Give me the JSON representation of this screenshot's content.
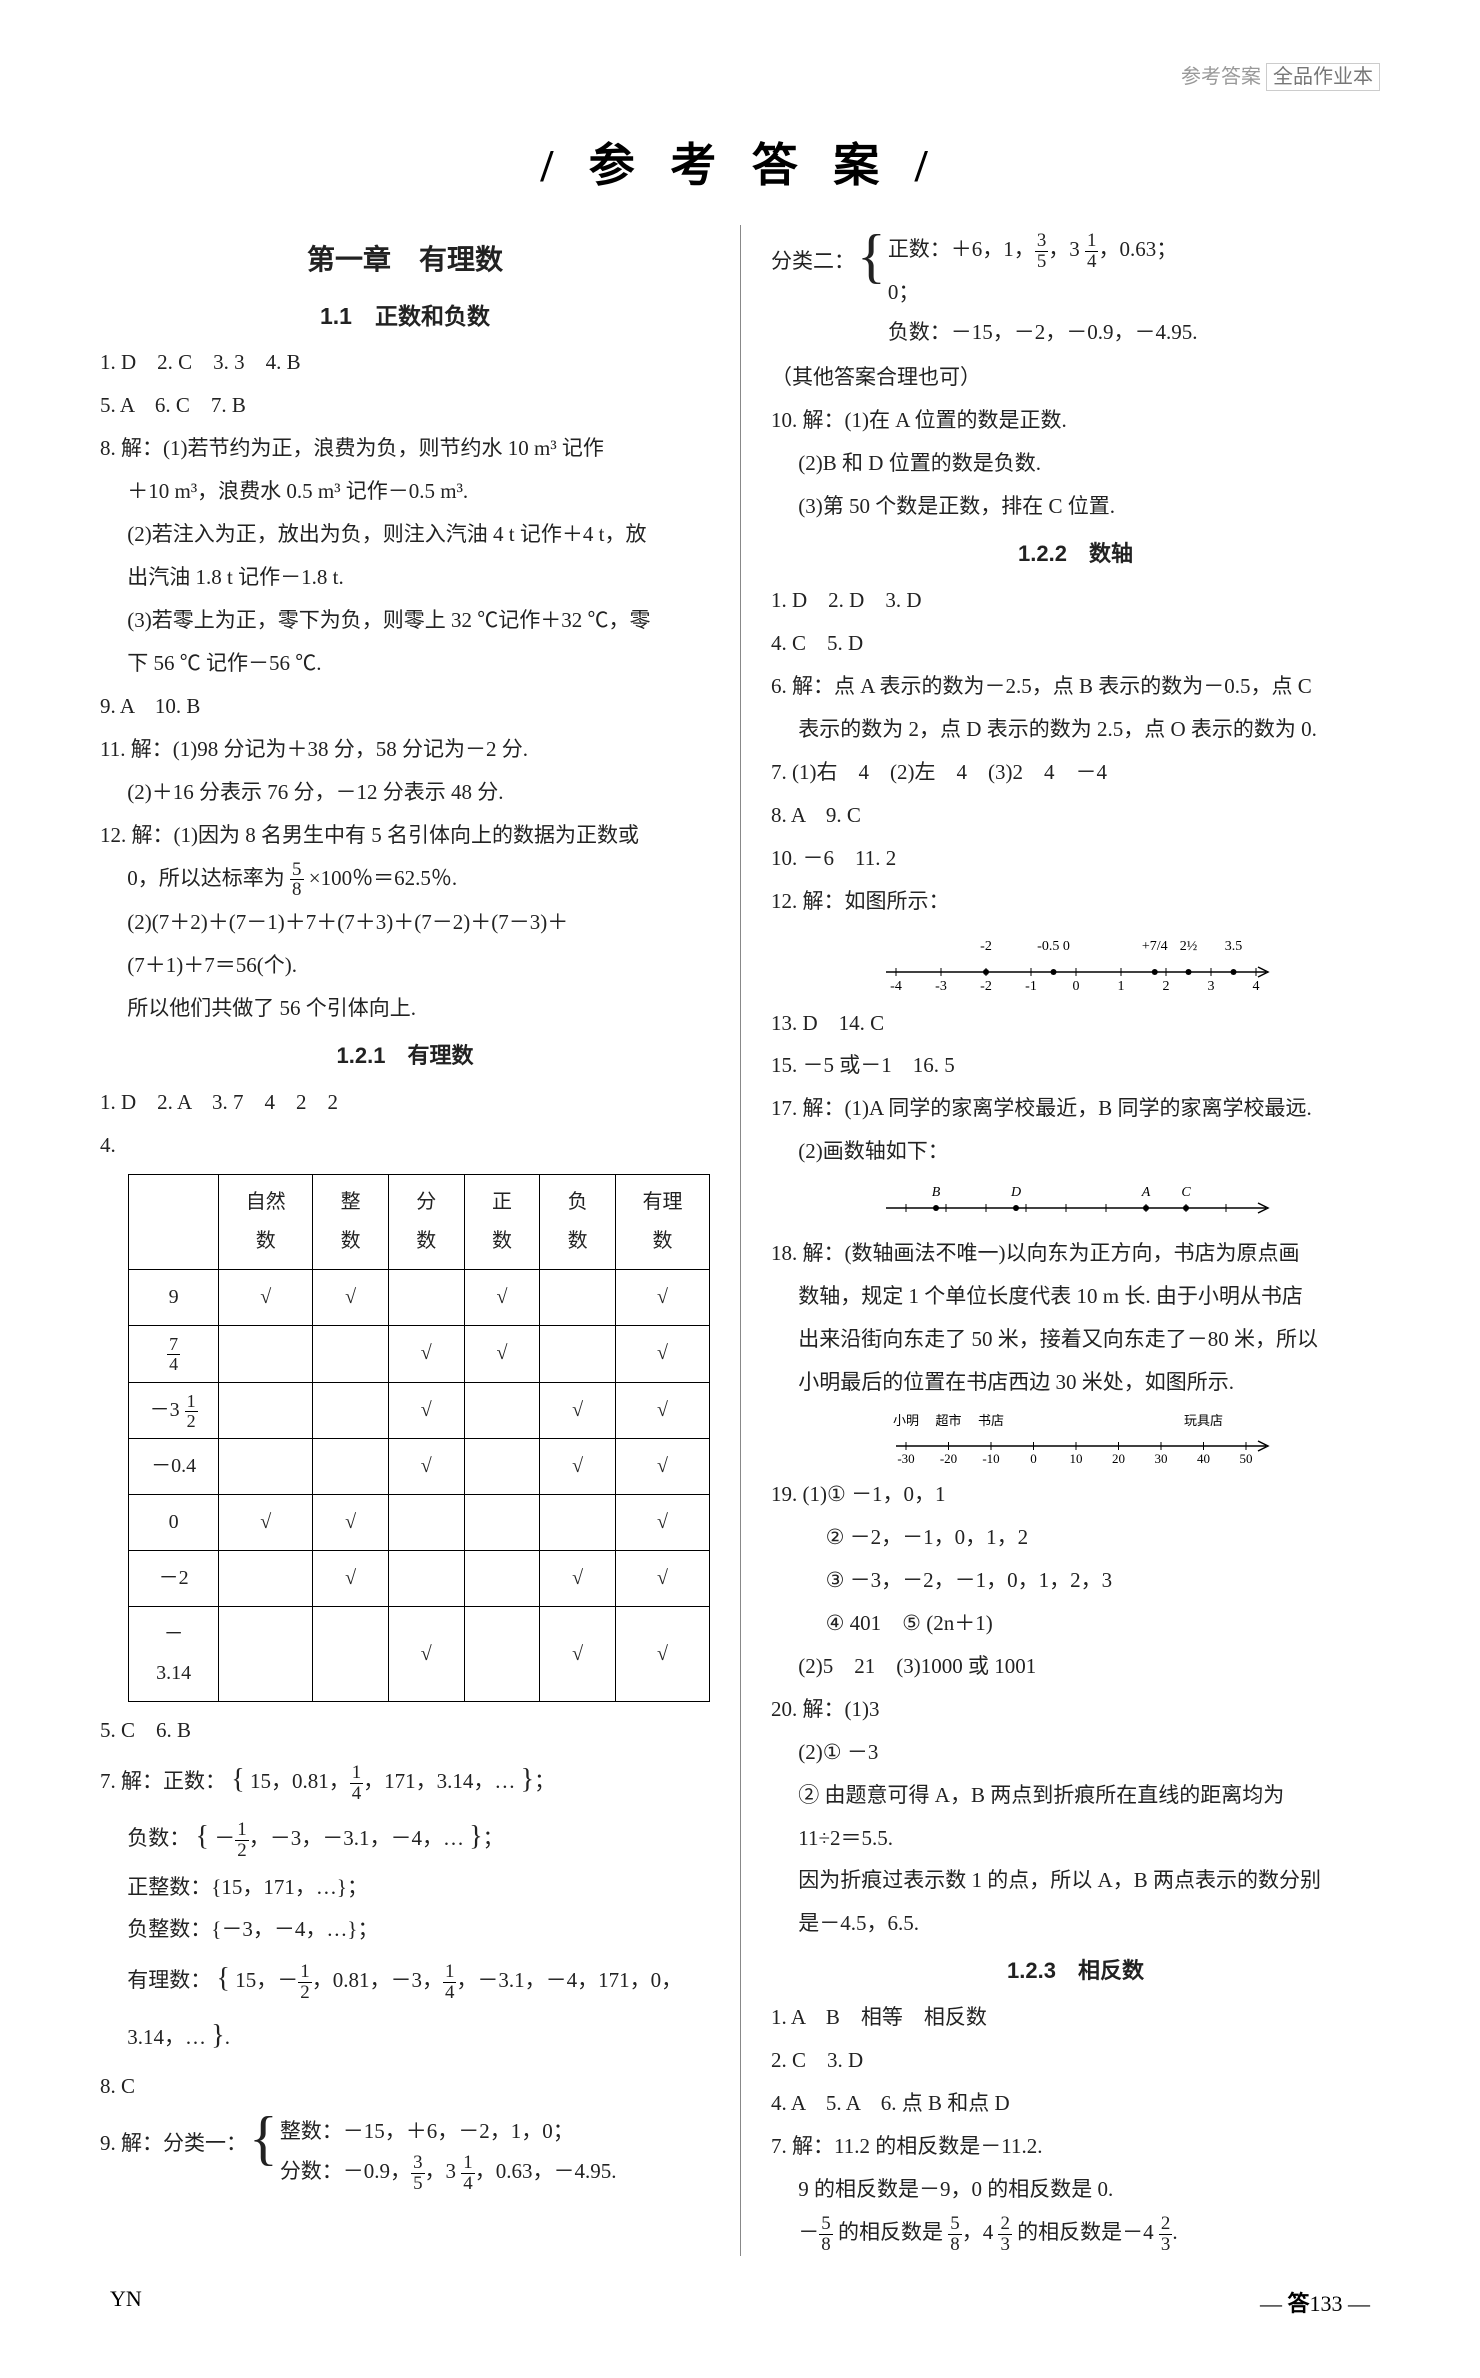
{
  "header": {
    "breadcrumb": "参考答案",
    "brand": "全品作业本"
  },
  "mainTitle": "/ 参 考 答 案 /",
  "left": {
    "chapter": "第一章　有理数",
    "sec11": "1.1　正数和负数",
    "a1": "1. D　2. C　3. 3　4. B",
    "a5": "5. A　6. C　7. B",
    "a8": "8. 解：(1)若节约为正，浪费为负，则节约水 10 m³ 记作",
    "a8b": "＋10 m³，浪费水 0.5 m³ 记作－0.5 m³.",
    "a8c": "(2)若注入为正，放出为负，则注入汽油 4 t 记作＋4 t，放",
    "a8d": "出汽油 1.8 t 记作－1.8 t.",
    "a8e": "(3)若零上为正，零下为负，则零上 32 ℃记作＋32 ℃，零",
    "a8f": "下 56 ℃ 记作－56 ℃.",
    "a9": "9. A　10. B",
    "a11": "11. 解：(1)98 分记为＋38 分，58 分记为－2 分.",
    "a11b": "(2)＋16 分表示 76 分，－12 分表示 48 分.",
    "a12": "12. 解：(1)因为 8 名男生中有 5 名引体向上的数据为正数或",
    "a12b_pre": "0，所以达标率为",
    "a12b_post": "×100％＝62.5％.",
    "a12c": "(2)(7＋2)＋(7－1)＋7＋(7＋3)＋(7－2)＋(7－3)＋",
    "a12d": "(7＋1)＋7＝56(个).",
    "a12e": "所以他们共做了 56 个引体向上.",
    "sec121": "1.2.1　有理数",
    "b1": "1. D　2. A　3. 7　4　2　2",
    "b4": "4.",
    "table": {
      "headers": [
        "",
        "自然数",
        "整数",
        "分数",
        "正数",
        "负数",
        "有理数"
      ],
      "rows": [
        {
          "label": "9",
          "cells": [
            "√",
            "√",
            "",
            "√",
            "",
            "√"
          ]
        },
        {
          "label_frac": {
            "num": "7",
            "den": "4"
          },
          "cells": [
            "",
            "",
            "√",
            "√",
            "",
            "√"
          ]
        },
        {
          "label_mixed": {
            "whole": "－3",
            "num": "1",
            "den": "2"
          },
          "cells": [
            "",
            "",
            "√",
            "",
            "√",
            "√"
          ]
        },
        {
          "label": "－0.4",
          "cells": [
            "",
            "",
            "√",
            "",
            "√",
            "√"
          ]
        },
        {
          "label": "0",
          "cells": [
            "√",
            "√",
            "",
            "",
            "",
            "√"
          ]
        },
        {
          "label": "－2",
          "cells": [
            "",
            "√",
            "",
            "",
            "√",
            "√"
          ]
        },
        {
          "label": "－3.14",
          "cells": [
            "",
            "",
            "√",
            "",
            "√",
            "√"
          ]
        }
      ]
    },
    "b5": "5. C　6. B",
    "b7_label": "7. 解：正数：",
    "b7_set": "{ 15，0.81，¼，171，3.14，… }；",
    "b7neg_label": "负数：",
    "b7neg_set": "{ －½，－3，－3.1，－4，… }；",
    "b7posint": "正整数：{15，171，…}；",
    "b7negint": "负整数：{－3，－4，…}；",
    "b7rat_label": "有理数：",
    "b7rat_set": "{ 15，－½，0.81，－3，¼，－3.1，－4，171，0，",
    "b7rat_set2": "3.14，… }.",
    "b8": "8. C",
    "b9_label": "9. 解：分类一：",
    "b9_int": "整数：－15，＋6，－2，1，0；",
    "b9_frac_pre": "分数：－0.9，",
    "b9_frac_post": "，0.63，－4.95."
  },
  "right": {
    "r_class2_label": "分类二：",
    "r_pos_pre": "正数：＋6，1，",
    "r_pos_post": "，0.63；",
    "r_zero": "0；",
    "r_neg": "负数：－15，－2，－0.9，－4.95.",
    "r_other": "（其他答案合理也可）",
    "r10": "10. 解：(1)在 A 位置的数是正数.",
    "r10b": "(2)B 和 D 位置的数是负数.",
    "r10c": "(3)第 50 个数是正数，排在 C 位置.",
    "sec122": "1.2.2　数轴",
    "c1": "1. D　2. D　3. D",
    "c4": "4. C　5. D",
    "c6": "6. 解：点 A 表示的数为－2.5，点 B 表示的数为－0.5，点 C",
    "c6b": "表示的数为 2，点 D 表示的数为 2.5，点 O 表示的数为 0.",
    "c7": "7. (1)右　4　(2)左　4　(3)2　4　－4",
    "c8": "8. A　9. C",
    "c10": "10. －6　11. 2",
    "c12": "12. 解：如图所示：",
    "numline1": {
      "ticks": [
        "-4",
        "-3",
        "-2",
        "-1",
        "0",
        "1",
        "2",
        "3",
        "4"
      ],
      "points": [
        {
          "x": -2,
          "label": "-2"
        },
        {
          "x": -0.5,
          "label": "-0.5 0"
        },
        {
          "x": 1.75,
          "label": "+7/4"
        },
        {
          "x": 2.5,
          "label": "2½"
        },
        {
          "x": 3.5,
          "label": "3.5"
        }
      ]
    },
    "c13": "13. D　14. C",
    "c15": "15. －5 或－1　16. 5",
    "c17": "17. 解：(1)A 同学的家离学校最近，B 同学的家离学校最远.",
    "c17b": "(2)画数轴如下：",
    "numline2": {
      "points": [
        "B",
        "D",
        "A",
        "C"
      ]
    },
    "c18": "18. 解：(数轴画法不唯一)以向东为正方向，书店为原点画",
    "c18b": "数轴，规定 1 个单位长度代表 10 m 长. 由于小明从书店",
    "c18c": "出来沿街向东走了 50 米，接着又向东走了－80 米，所以",
    "c18d": "小明最后的位置在书店西边 30 米处，如图所示.",
    "numline3": {
      "labels_top": [
        "小明",
        "超市",
        "书店",
        "",
        "",
        "",
        "",
        "玩具店"
      ],
      "ticks": [
        "-30",
        "-20",
        "-10",
        "0",
        "10",
        "20",
        "30",
        "40",
        "50"
      ]
    },
    "c19a": "19. (1)① －1，0，1",
    "c19b": "② －2，－1，0，1，2",
    "c19c": "③ －3，－2，－1，0，1，2，3",
    "c19d": "④ 401　⑤ (2n＋1)",
    "c19e": "(2)5　21　(3)1000 或 1001",
    "c20a": "20. 解：(1)3",
    "c20b": "(2)① －3",
    "c20c": "② 由题意可得 A，B 两点到折痕所在直线的距离均为",
    "c20d": "11÷2＝5.5.",
    "c20e": "因为折痕过表示数 1 的点，所以 A，B 两点表示的数分别",
    "c20f": "是－4.5，6.5.",
    "sec123": "1.2.3　相反数",
    "d1": "1. A　B　相等　相反数",
    "d2": "2. C　3. D",
    "d4": "4. A　5. A　6. 点 B 和点 D",
    "d7": "7. 解：11.2 的相反数是－11.2.",
    "d7b": "9 的相反数是－9，0 的相反数是 0.",
    "d7c_pre": "－",
    "d7c_mid": " 的相反数是 ",
    "d7c_mid2": "，4",
    "d7c_mid3": " 的相反数是－4",
    "d7c_post": "."
  },
  "footer": {
    "left": "YN",
    "right_label": "答",
    "right_num": "133"
  },
  "fractions": {
    "f58": {
      "num": "5",
      "den": "8"
    },
    "f35": {
      "num": "3",
      "den": "5"
    },
    "f14": {
      "num": "1",
      "den": "4"
    },
    "f12": {
      "num": "1",
      "den": "2"
    },
    "f23": {
      "num": "2",
      "den": "3"
    },
    "f314": {
      "whole": "3",
      "num": "1",
      "den": "4"
    }
  }
}
